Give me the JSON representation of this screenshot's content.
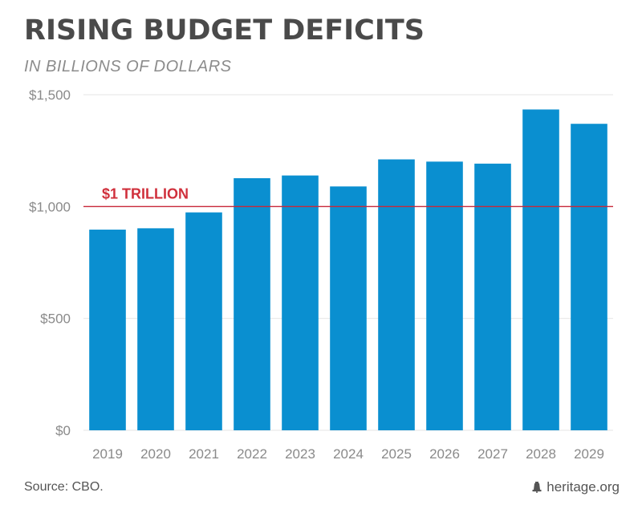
{
  "chart_data": {
    "type": "bar",
    "title": "RISING BUDGET DEFICITS",
    "subtitle": "IN BILLIONS OF DOLLARS",
    "categories": [
      "2019",
      "2020",
      "2021",
      "2022",
      "2023",
      "2024",
      "2025",
      "2026",
      "2027",
      "2028",
      "2029"
    ],
    "values": [
      897,
      903,
      974,
      1127,
      1139,
      1090,
      1211,
      1201,
      1192,
      1434,
      1370
    ],
    "ylim": [
      0,
      1500
    ],
    "yticks": [
      0,
      500,
      1000,
      1500
    ],
    "ytick_labels": [
      "$0",
      "$500",
      "$1,000",
      "$1,500"
    ],
    "grid": true,
    "bar_color": "#0a8fd0",
    "reference_line": {
      "value": 1000,
      "label": "$1 TRILLION",
      "color": "#c8283a"
    }
  },
  "footer": {
    "source": "Source: CBO.",
    "brand": "heritage.org",
    "brand_icon": "liberty-bell-icon"
  }
}
